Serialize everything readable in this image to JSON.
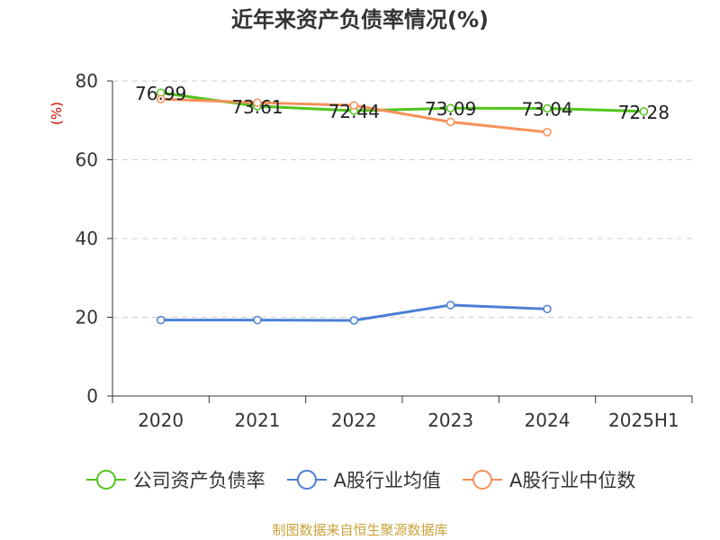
{
  "chart_data": {
    "type": "line",
    "title": "近年来资产负债率情况(%)",
    "ylabel": "(%)",
    "xlabel": "",
    "categories": [
      "2020",
      "2021",
      "2022",
      "2023",
      "2024",
      "2025H1"
    ],
    "ylim": [
      0,
      80
    ],
    "yticks": [
      0,
      20,
      40,
      60,
      80
    ],
    "grid": true,
    "legend_position": "bottom",
    "series": [
      {
        "name": "公司资产负债率",
        "color": "#52c41a",
        "values": [
          76.99,
          73.61,
          72.44,
          73.09,
          73.04,
          72.28
        ],
        "labels": [
          "76.99",
          "73.61",
          "72.44",
          "73.09",
          "73.04",
          "72.28"
        ]
      },
      {
        "name": "A股行业均值",
        "color": "#4a7fd4",
        "values": [
          19.3,
          19.3,
          19.2,
          23.1,
          22.1,
          null
        ]
      },
      {
        "name": "A股行业中位数",
        "color": "#f5915a",
        "values": [
          75.4,
          74.5,
          73.8,
          69.6,
          67.0,
          null
        ]
      }
    ]
  },
  "source": "制图数据来自恒生聚源数据库"
}
